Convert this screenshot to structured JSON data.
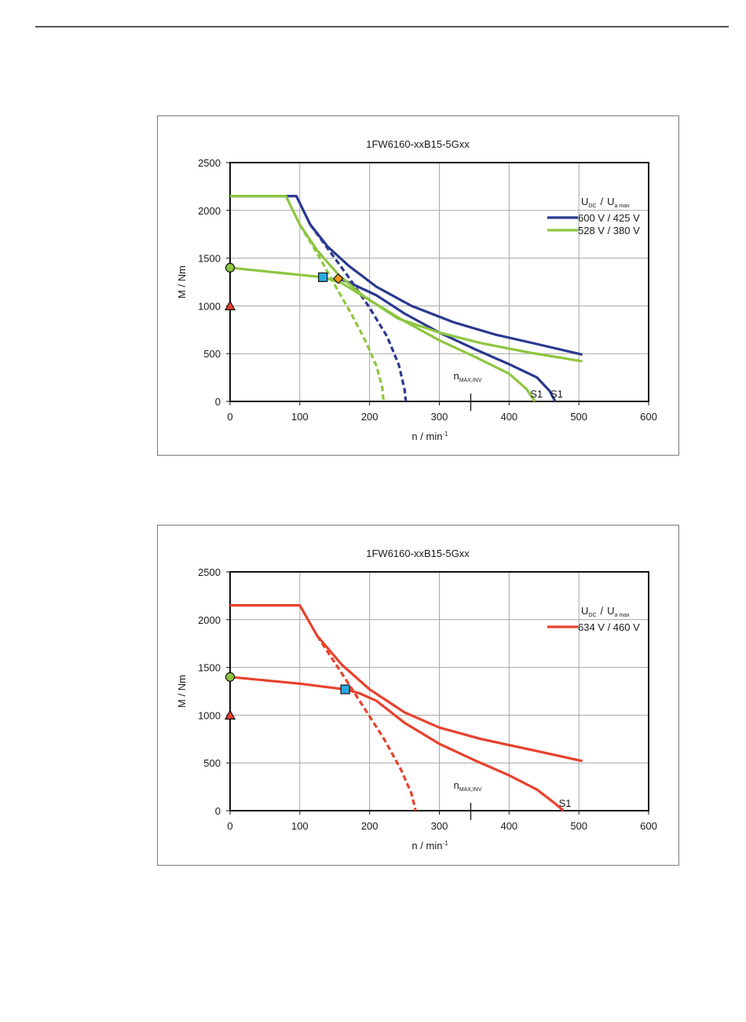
{
  "chart_data": [
    {
      "type": "line",
      "title": "1FW6160-xxB15-5Gxx",
      "xlabel": "n / min",
      "xlabel_sup": "-1",
      "ylabel": "M / Nm",
      "xlim": [
        0,
        600
      ],
      "ylim": [
        0,
        2500
      ],
      "xticks": [
        0,
        100,
        200,
        300,
        400,
        500,
        600
      ],
      "yticks": [
        0,
        500,
        1000,
        1500,
        2000,
        2500
      ],
      "grid": true,
      "legend": {
        "position": "top-right",
        "title_main": "U",
        "title_sub1": "DC",
        "title_sep": "/",
        "title_sub2": "a max"
      },
      "annotation_nmax": {
        "label": "n",
        "label_sub": "MAX,INV",
        "x": 345
      },
      "series": [
        {
          "name": "600 V / 425 V",
          "color": "#2b3990",
          "in_legend": true,
          "style": "solid",
          "points": [
            [
              0,
              2150
            ],
            [
              95,
              2150
            ],
            [
              115,
              1850
            ],
            [
              140,
              1620
            ],
            [
              170,
              1420
            ],
            [
              210,
              1200
            ],
            [
              260,
              1000
            ],
            [
              320,
              830
            ],
            [
              380,
              700
            ],
            [
              440,
              600
            ],
            [
              505,
              490
            ]
          ]
        },
        {
          "name": "600 V / 425 V S1",
          "color": "#2b3990",
          "in_legend": false,
          "style": "solid",
          "end_label": "S1",
          "points": [
            [
              155,
              1290
            ],
            [
              175,
              1230
            ],
            [
              210,
              1110
            ],
            [
              250,
              920
            ],
            [
              300,
              720
            ],
            [
              350,
              550
            ],
            [
              400,
              390
            ],
            [
              440,
              250
            ],
            [
              458,
              110
            ],
            [
              466,
              0
            ]
          ]
        },
        {
          "name": "600 V / 425 V dashed",
          "color": "#2b3990",
          "in_legend": false,
          "style": "dashed",
          "points": [
            [
              115,
              1850
            ],
            [
              140,
              1600
            ],
            [
              170,
              1300
            ],
            [
              200,
              980
            ],
            [
              225,
              680
            ],
            [
              242,
              380
            ],
            [
              250,
              130
            ],
            [
              252,
              0
            ]
          ]
        },
        {
          "name": "528 V / 380 V",
          "color": "#8dc63f",
          "in_legend": true,
          "style": "solid",
          "points": [
            [
              0,
              2150
            ],
            [
              80,
              2150
            ],
            [
              100,
              1850
            ],
            [
              125,
              1580
            ],
            [
              155,
              1330
            ],
            [
              190,
              1110
            ],
            [
              240,
              870
            ],
            [
              300,
              720
            ],
            [
              360,
              610
            ],
            [
              430,
              510
            ],
            [
              505,
              420
            ]
          ]
        },
        {
          "name": "528 V / 380 V S1",
          "color": "#8dc63f",
          "in_legend": true,
          "hide_legend": true,
          "style": "solid",
          "end_label": "S1",
          "points": [
            [
              0,
              1400
            ],
            [
              80,
              1340
            ],
            [
              133,
              1300
            ],
            [
              160,
              1240
            ],
            [
              200,
              1060
            ],
            [
              250,
              840
            ],
            [
              300,
              640
            ],
            [
              350,
              470
            ],
            [
              400,
              290
            ],
            [
              425,
              130
            ],
            [
              437,
              0
            ]
          ]
        },
        {
          "name": "528 V / 380 V dashed",
          "color": "#8dc63f",
          "in_legend": false,
          "style": "dashed",
          "points": [
            [
              100,
              1850
            ],
            [
              125,
              1550
            ],
            [
              150,
              1220
            ],
            [
              175,
              900
            ],
            [
              195,
              620
            ],
            [
              210,
              370
            ],
            [
              218,
              150
            ],
            [
              220,
              0
            ]
          ]
        }
      ],
      "markers": [
        {
          "shape": "circle",
          "x": 0,
          "y": 1400,
          "color": "#8dc63f"
        },
        {
          "shape": "triangle",
          "x": 0,
          "y": 1000,
          "color": "#e8412c"
        },
        {
          "shape": "square",
          "x": 133,
          "y": 1300,
          "color": "#29abe2"
        },
        {
          "shape": "diamond",
          "x": 155,
          "y": 1285,
          "color": "#f7941d"
        }
      ]
    },
    {
      "type": "line",
      "title": "1FW6160-xxB15-5Gxx",
      "xlabel": "n / min",
      "xlabel_sup": "-1",
      "ylabel": "M / Nm",
      "xlim": [
        0,
        600
      ],
      "ylim": [
        0,
        2500
      ],
      "xticks": [
        0,
        100,
        200,
        300,
        400,
        500,
        600
      ],
      "yticks": [
        0,
        500,
        1000,
        1500,
        2000,
        2500
      ],
      "grid": true,
      "legend": {
        "position": "top-right",
        "title_main": "U",
        "title_sub1": "DC",
        "title_sep": "/",
        "title_sub2": "a max"
      },
      "annotation_nmax": {
        "label": "n",
        "label_sub": "MAX,INV",
        "x": 345
      },
      "series": [
        {
          "name": "634 V / 460 V",
          "color": "#e8412c",
          "in_legend": true,
          "style": "solid",
          "points": [
            [
              0,
              2150
            ],
            [
              100,
              2150
            ],
            [
              125,
              1830
            ],
            [
              160,
              1530
            ],
            [
              200,
              1270
            ],
            [
              250,
              1030
            ],
            [
              300,
              870
            ],
            [
              360,
              750
            ],
            [
              430,
              640
            ],
            [
              505,
              520
            ]
          ]
        },
        {
          "name": "634 V / 460 V S1",
          "color": "#e8412c",
          "in_legend": false,
          "style": "solid",
          "end_label": "S1",
          "points": [
            [
              0,
              1400
            ],
            [
              100,
              1330
            ],
            [
              165,
              1270
            ],
            [
              185,
              1230
            ],
            [
              210,
              1150
            ],
            [
              250,
              920
            ],
            [
              300,
              700
            ],
            [
              350,
              530
            ],
            [
              400,
              370
            ],
            [
              440,
              220
            ],
            [
              465,
              80
            ],
            [
              478,
              0
            ]
          ]
        },
        {
          "name": "634 V / 460 V dashed",
          "color": "#e8412c",
          "in_legend": false,
          "style": "dashed",
          "points": [
            [
              125,
              1830
            ],
            [
              160,
              1440
            ],
            [
              190,
              1100
            ],
            [
              220,
              760
            ],
            [
              245,
              430
            ],
            [
              260,
              180
            ],
            [
              266,
              0
            ]
          ]
        }
      ],
      "markers": [
        {
          "shape": "circle",
          "x": 0,
          "y": 1400,
          "color": "#8dc63f"
        },
        {
          "shape": "triangle",
          "x": 0,
          "y": 1000,
          "color": "#e8412c"
        },
        {
          "shape": "square",
          "x": 165,
          "y": 1270,
          "color": "#29abe2"
        }
      ]
    }
  ]
}
